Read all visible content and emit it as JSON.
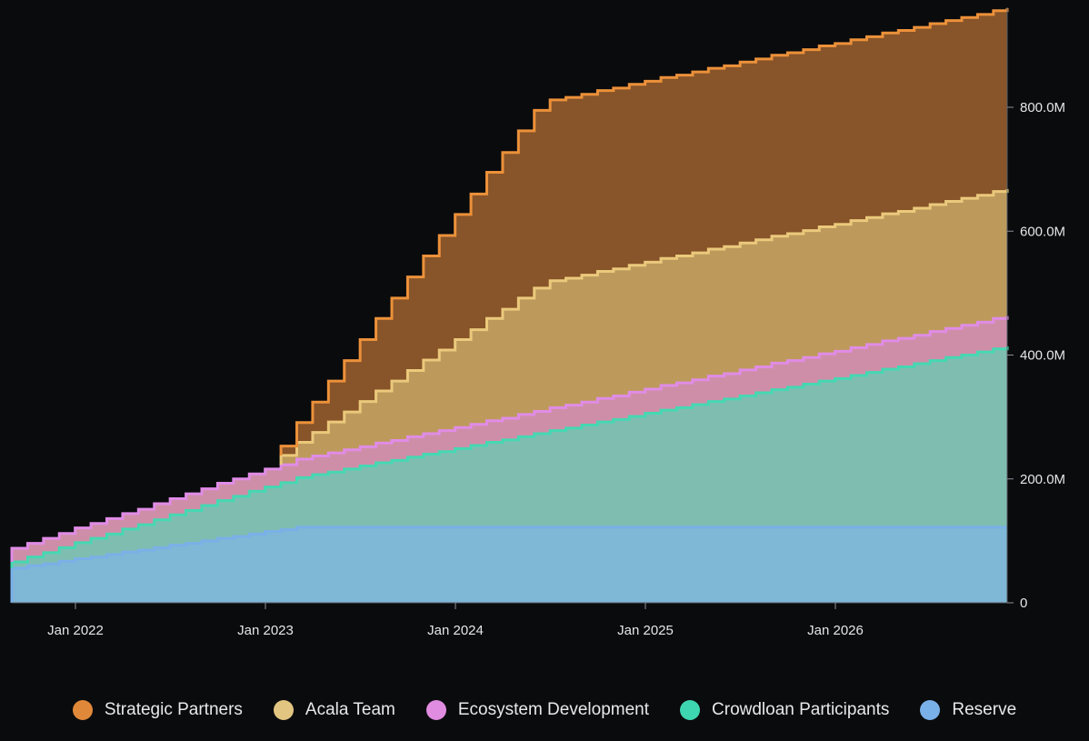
{
  "chart_data": {
    "type": "area",
    "stacked": true,
    "step": true,
    "x_start_month": "2021-09",
    "x_interval": "monthly",
    "x_ticks": [
      "Jan 2022",
      "Jan 2023",
      "Jan 2024",
      "Jan 2025",
      "Jan 2026"
    ],
    "y_ticks": [
      "0",
      "200.0M",
      "400.0M",
      "600.0M",
      "800.0M"
    ],
    "y_tick_values": [
      0,
      200,
      400,
      600,
      800
    ],
    "ylim": [
      0,
      960
    ],
    "y_unit": "M",
    "y_axis_position": "right",
    "legend_position": "bottom",
    "grid": false,
    "series": [
      {
        "name": "Reserve",
        "line_color": "#7ab0e8",
        "fill_color": "#7fb7d6",
        "legend_color": "#7ab0e8",
        "values": [
          56,
          60,
          63,
          67,
          71,
          74,
          78,
          82,
          85,
          89,
          93,
          96,
          100,
          104,
          107,
          111,
          115,
          118,
          122,
          122,
          122,
          122,
          122,
          122,
          122,
          122,
          122,
          122,
          122,
          122,
          122,
          122,
          122,
          122,
          122,
          122,
          122,
          122,
          122,
          122,
          122,
          122,
          122,
          122,
          122,
          122,
          122,
          122,
          122,
          122,
          122,
          122,
          122,
          122,
          122,
          122,
          122,
          122,
          122,
          122,
          122,
          122,
          122,
          122
        ]
      },
      {
        "name": "Crowdloan Participants",
        "line_color": "#45d8b2",
        "fill_color": "#80bdb1",
        "legend_color": "#3ed6b0",
        "values": [
          10,
          14,
          18,
          22,
          26,
          30,
          33,
          37,
          41,
          45,
          49,
          53,
          57,
          61,
          65,
          69,
          72,
          76,
          80,
          85,
          89,
          94,
          99,
          104,
          108,
          113,
          118,
          122,
          127,
          132,
          137,
          141,
          146,
          151,
          156,
          160,
          165,
          170,
          174,
          179,
          184,
          189,
          193,
          198,
          203,
          207,
          212,
          217,
          222,
          226,
          231,
          236,
          240,
          245,
          250,
          255,
          259,
          264,
          269,
          274,
          278,
          283,
          288,
          292
        ]
      },
      {
        "name": "Ecosystem Development",
        "line_color": "#e08ce6",
        "fill_color": "#cf8ea8",
        "legend_color": "#e08ce0",
        "values": [
          22,
          22,
          23,
          23,
          24,
          24,
          25,
          25,
          25,
          26,
          26,
          27,
          27,
          28,
          28,
          28,
          29,
          29,
          30,
          30,
          31,
          31,
          31,
          32,
          32,
          33,
          33,
          34,
          34,
          34,
          35,
          35,
          36,
          36,
          37,
          37,
          37,
          38,
          38,
          39,
          39,
          40,
          40,
          40,
          41,
          41,
          42,
          42,
          43,
          43,
          43,
          44,
          44,
          45,
          45,
          46,
          46,
          46,
          47,
          47,
          48,
          48,
          49,
          49
        ]
      },
      {
        "name": "Acala Team",
        "line_color": "#ebc97c",
        "fill_color": "#bd9a5c",
        "legend_color": "#e2c580",
        "values": [
          0,
          0,
          0,
          0,
          0,
          0,
          0,
          0,
          0,
          0,
          0,
          0,
          0,
          0,
          0,
          0,
          0,
          15,
          27,
          38,
          50,
          61,
          73,
          84,
          96,
          107,
          119,
          130,
          142,
          153,
          165,
          176,
          188,
          199,
          205,
          205,
          205,
          205,
          205,
          205,
          205,
          205,
          205,
          205,
          205,
          205,
          205,
          205,
          205,
          205,
          205,
          205,
          205,
          205,
          205,
          205,
          205,
          205,
          205,
          205,
          205,
          205,
          205,
          205
        ]
      },
      {
        "name": "Strategic Partners",
        "line_color": "#ec913a",
        "fill_color": "#885429",
        "legend_color": "#e0883a",
        "values": [
          0,
          0,
          0,
          0,
          0,
          0,
          0,
          0,
          0,
          0,
          0,
          0,
          0,
          0,
          0,
          0,
          0,
          15,
          32,
          49,
          66,
          83,
          100,
          117,
          134,
          151,
          168,
          185,
          202,
          219,
          236,
          253,
          270,
          287,
          292,
          292,
          292,
          292,
          292,
          292,
          292,
          292,
          292,
          292,
          292,
          292,
          292,
          292,
          292,
          292,
          292,
          292,
          292,
          292,
          292,
          292,
          292,
          292,
          292,
          292,
          292,
          292,
          292,
          292
        ]
      }
    ],
    "legend_order": [
      "Strategic Partners",
      "Acala Team",
      "Ecosystem Development",
      "Crowdloan Participants",
      "Reserve"
    ]
  }
}
